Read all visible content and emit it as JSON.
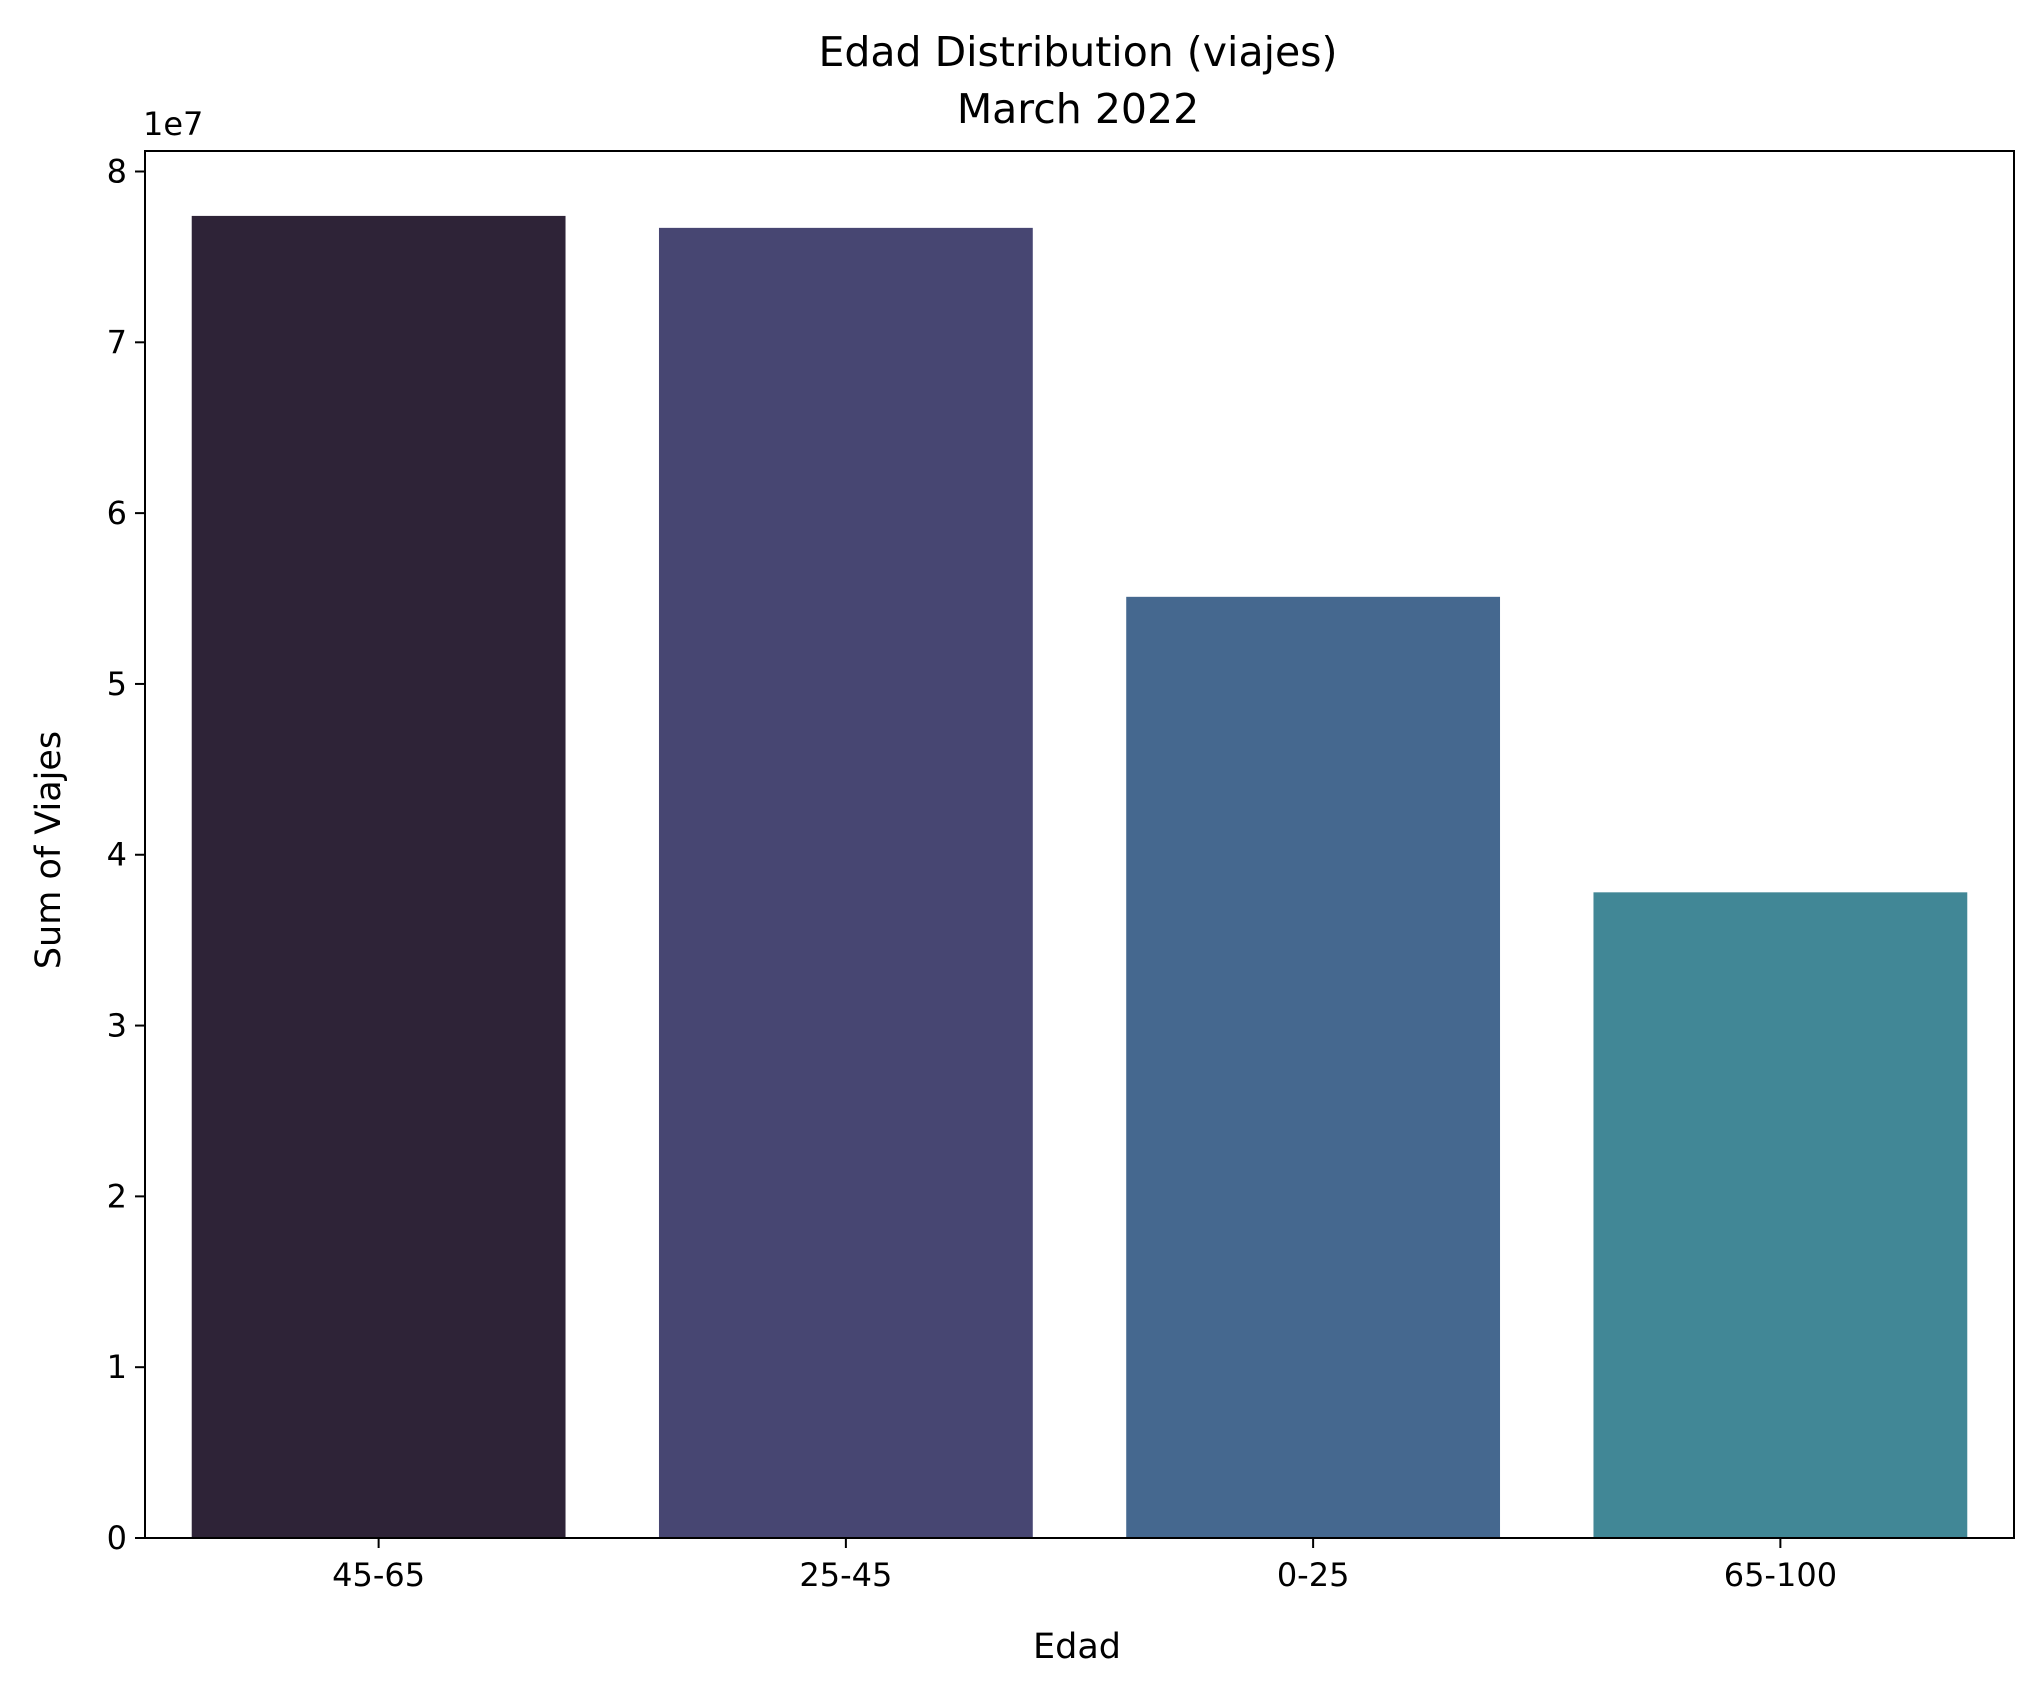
{
  "chart_data": {
    "type": "bar",
    "title": "Edad Distribution (viajes)",
    "subtitle": "March 2022",
    "xlabel": "Edad",
    "ylabel": "Sum of Viajes",
    "y_multiplier_label": "1e7",
    "y_scale": 10000000,
    "categories": [
      "45-65",
      "25-45",
      "0-25",
      "65-100"
    ],
    "values": [
      77400000,
      76700000,
      55100000,
      37800000
    ],
    "colors": [
      "#2e2337",
      "#474672",
      "#45688f",
      "#418796"
    ],
    "ylim": [
      0,
      81200000
    ],
    "yticks": [
      0,
      10000000,
      20000000,
      30000000,
      40000000,
      50000000,
      60000000,
      70000000,
      80000000
    ],
    "ytick_labels": [
      "0",
      "1",
      "2",
      "3",
      "4",
      "5",
      "6",
      "7",
      "8"
    ],
    "grid": false,
    "legend": "none"
  }
}
